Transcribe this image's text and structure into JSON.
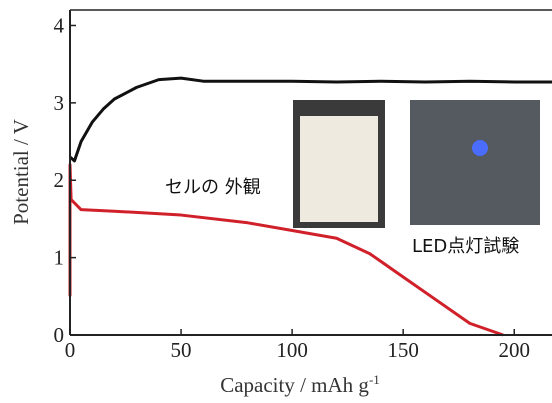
{
  "chart_data": {
    "type": "line",
    "xlabel": "Capacity / mAh g",
    "xlabel_sup": "-1",
    "ylabel": "Potential / V",
    "annotations": [
      "セルの 外観",
      "LED点灯試験"
    ],
    "xlim": [
      0,
      217
    ],
    "ylim": [
      0,
      4.2
    ],
    "xticks": [
      0,
      50,
      100,
      150,
      200
    ],
    "yticks": [
      0,
      1,
      2,
      3,
      4
    ],
    "series": [
      {
        "color": "#111111",
        "x": [
          0,
          2,
          5,
          10,
          15,
          20,
          30,
          40,
          50,
          60,
          80,
          100,
          120,
          140,
          160,
          180,
          200,
          217
        ],
        "values": [
          2.3,
          2.25,
          2.5,
          2.75,
          2.92,
          3.05,
          3.2,
          3.3,
          3.32,
          3.28,
          3.28,
          3.28,
          3.27,
          3.28,
          3.27,
          3.28,
          3.27,
          3.27
        ]
      },
      {
        "color": "#d0202a",
        "x": [
          0,
          0,
          0.5,
          5,
          20,
          50,
          80,
          100,
          120,
          135,
          150,
          165,
          180,
          195
        ],
        "values": [
          0.5,
          2.2,
          1.75,
          1.62,
          1.6,
          1.55,
          1.45,
          1.35,
          1.25,
          1.05,
          0.75,
          0.45,
          0.15,
          0
        ]
      }
    ]
  }
}
